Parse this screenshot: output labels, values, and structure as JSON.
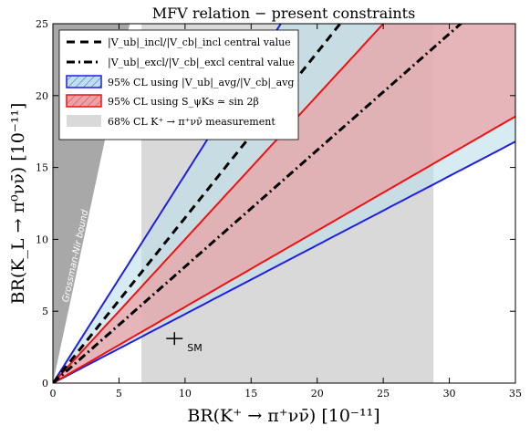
{
  "chart_data": {
    "type": "line",
    "title": "MFV relation − present constraints",
    "xlabel": "BR(K⁺ → π⁺νν̄) [10⁻¹¹]",
    "ylabel": "BR(K_L → π⁰νν̄) [10⁻¹¹]",
    "xlim": [
      0,
      35
    ],
    "ylim": [
      0,
      25
    ],
    "xticks": [
      0,
      5,
      10,
      15,
      20,
      25,
      30,
      35
    ],
    "yticks": [
      0,
      5,
      10,
      15,
      20,
      25
    ],
    "grid": false,
    "legend_position": "top-left",
    "legend": [
      "|V_ub|_incl/|V_cb|_incl central value",
      "|V_ub|_excl/|V_cb|_excl central value",
      "95% CL using |V_ub|_avg/|V_cb|_avg",
      "95% CL using S_ψKs ≃ sin 2β",
      "68% CL K⁺ → π⁺νν̄ measurement"
    ],
    "bounds_in_slope": [
      {
        "name": "grossman-nir-bound",
        "slope": 4.3
      },
      {
        "name": "incl-central",
        "slope": 1.15
      },
      {
        "name": "excl-central",
        "slope": 0.81
      },
      {
        "name": "blue-upper",
        "slope": 1.45
      },
      {
        "name": "blue-lower",
        "slope": 0.48
      },
      {
        "name": "red-upper",
        "slope": 1.0
      },
      {
        "name": "red-lower",
        "slope": 0.53
      }
    ],
    "k_plus_band": [
      6.7,
      28.8
    ],
    "sm_point": {
      "x": 9.2,
      "y": 3.1,
      "label": "SM"
    },
    "grossman_nir_label": "Grossman-Nir bound",
    "colors": {
      "blue_line": "#1f1fdd",
      "red_line": "#ee1111",
      "blue_fill": "#bde0ea",
      "red_fill": "#e9a3a6",
      "grey_band": "#d9d9d9",
      "gn_fill": "#a8a8a8"
    }
  }
}
